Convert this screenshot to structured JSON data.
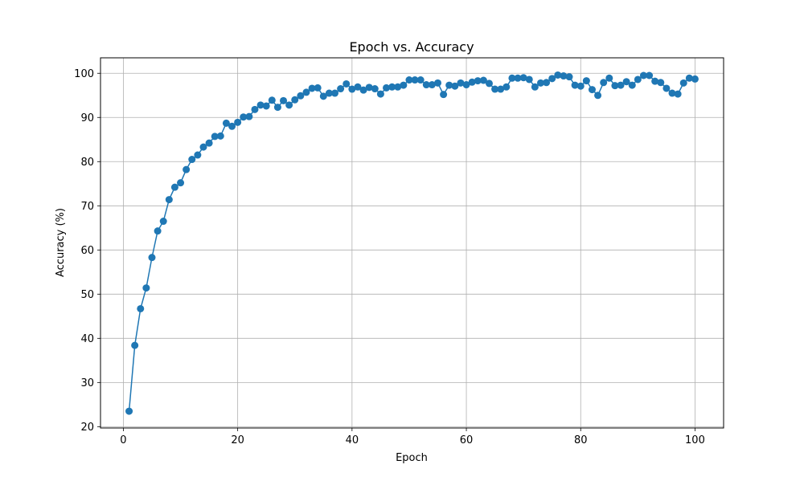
{
  "chart_data": {
    "type": "line",
    "title": "Epoch vs. Accuracy",
    "xlabel": "Epoch",
    "ylabel": "Accuracy (%)",
    "xlim": [
      -4,
      105
    ],
    "ylim": [
      19.7,
      103.5
    ],
    "x_ticks": [
      0,
      20,
      40,
      60,
      80,
      100
    ],
    "y_ticks": [
      20,
      30,
      40,
      50,
      60,
      70,
      80,
      90,
      100
    ],
    "grid": true,
    "marker": "circle",
    "series": [
      {
        "color": "#1f77b4",
        "x": [
          1,
          2,
          3,
          4,
          5,
          6,
          7,
          8,
          9,
          10,
          11,
          12,
          13,
          14,
          15,
          16,
          17,
          18,
          19,
          20,
          21,
          22,
          23,
          24,
          25,
          26,
          27,
          28,
          29,
          30,
          31,
          32,
          33,
          34,
          35,
          36,
          37,
          38,
          39,
          40,
          41,
          42,
          43,
          44,
          45,
          46,
          47,
          48,
          49,
          50,
          51,
          52,
          53,
          54,
          55,
          56,
          57,
          58,
          59,
          60,
          61,
          62,
          63,
          64,
          65,
          66,
          67,
          68,
          69,
          70,
          71,
          72,
          73,
          74,
          75,
          76,
          77,
          78,
          79,
          80,
          81,
          82,
          83,
          84,
          85,
          86,
          87,
          88,
          89,
          90,
          91,
          92,
          93,
          94,
          95,
          96,
          97,
          98,
          99,
          100
        ],
        "y": [
          23.5,
          38.4,
          46.7,
          51.4,
          58.3,
          64.3,
          66.5,
          71.4,
          74.2,
          75.2,
          78.2,
          80.5,
          81.5,
          83.3,
          84.2,
          85.7,
          85.8,
          88.7,
          88.0,
          88.9,
          90.1,
          90.2,
          91.8,
          92.8,
          92.6,
          93.9,
          92.3,
          93.8,
          92.8,
          94.0,
          94.9,
          95.7,
          96.6,
          96.7,
          94.8,
          95.5,
          95.5,
          96.5,
          97.6,
          96.4,
          96.9,
          96.2,
          96.8,
          96.5,
          95.3,
          96.7,
          96.9,
          96.9,
          97.3,
          98.5,
          98.5,
          98.5,
          97.4,
          97.4,
          97.8,
          95.2,
          97.3,
          97.1,
          97.8,
          97.4,
          98.0,
          98.3,
          98.4,
          97.7,
          96.4,
          96.4,
          96.9,
          98.9,
          98.9,
          99.0,
          98.6,
          96.9,
          97.8,
          97.9,
          98.8,
          99.6,
          99.4,
          99.2,
          97.3,
          97.1,
          98.3,
          96.3,
          95.0,
          97.9,
          98.9,
          97.2,
          97.3,
          98.1,
          97.3,
          98.6,
          99.5,
          99.5,
          98.2,
          97.9,
          96.6,
          95.5,
          95.3,
          97.8,
          98.9,
          98.7
        ]
      }
    ]
  }
}
